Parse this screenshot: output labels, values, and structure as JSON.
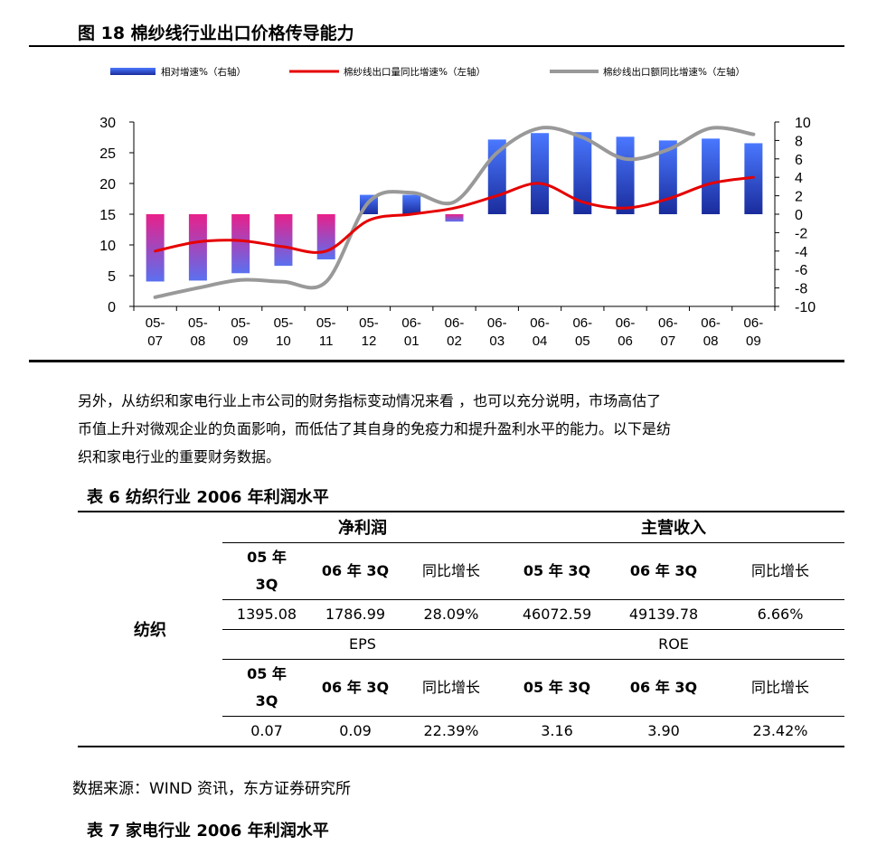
{
  "figure": {
    "title": "图 18 棉纱线行业出口价格传导能力"
  },
  "chart_data": {
    "type": "bar",
    "categories": [
      "05-07",
      "05-08",
      "05-09",
      "05-10",
      "05-11",
      "05-12",
      "06-01",
      "06-02",
      "06-03",
      "06-04",
      "06-05",
      "06-06",
      "06-07",
      "06-08",
      "06-09"
    ],
    "series": [
      {
        "name": "相对增速%（右轴）",
        "type": "bar",
        "axis": "right",
        "values": [
          -7.3,
          -7.2,
          -6.4,
          -5.6,
          -4.9,
          2.1,
          2.1,
          -0.8,
          8.1,
          8.8,
          8.9,
          8.4,
          8.0,
          8.2,
          7.7
        ]
      },
      {
        "name": "棉纱线出口量同比增速%（左轴）",
        "type": "line",
        "axis": "left",
        "values": [
          9.0,
          10.5,
          10.7,
          9.7,
          9.0,
          14.0,
          15.0,
          16.0,
          18.0,
          20.0,
          17.0,
          16.0,
          17.5,
          20.0,
          21.0
        ]
      },
      {
        "name": "棉纱线出口额同比增速%（左轴）",
        "type": "line",
        "axis": "left",
        "values": [
          1.5,
          3.0,
          4.3,
          4.0,
          4.0,
          17.0,
          18.5,
          17.0,
          25.0,
          29.0,
          27.5,
          24.0,
          25.5,
          29.0,
          28.0
        ]
      }
    ],
    "left_axis": {
      "ylim": [
        0,
        30
      ],
      "ticks": [
        "0",
        "5",
        "10",
        "15",
        "20",
        "25",
        "30"
      ]
    },
    "right_axis": {
      "ylim": [
        -10,
        10
      ],
      "ticks": [
        "-10",
        "-8",
        "-6",
        "-4",
        "-2",
        "0",
        "2",
        "4",
        "6",
        "8",
        "10"
      ]
    },
    "colors": {
      "bar_positive": "#1f3fd6",
      "bar_negative_top": "#e8208a",
      "bar_negative_bottom": "#5a70f0",
      "line_volume": "#e60000",
      "line_value": "#999999"
    },
    "grid": false,
    "legend_position": "top"
  },
  "paragraph": [
    "另外，从纺织和家电行业上市公司的财务指标变动情况来看 ，也可以充分说明，市场高估了",
    "币值上升对微观企业的负面影响，而低估了其自身的免疫力和提升盈利水平的能力。以下是纺",
    "织和家电行业的重要财务数据。"
  ],
  "table6": {
    "title": "表 6 纺织行业 2006 年利润水平",
    "category": "纺织",
    "group1": "净利润",
    "group2": "主营收入",
    "headers": [
      "05 年",
      "3Q",
      "06 年 3Q",
      "同比增长",
      "05 年 3Q",
      "06 年 3Q",
      "同比增长"
    ],
    "row1": [
      "1395.08",
      "1786.99",
      "28.09%",
      "46072.59",
      "49139.78",
      "6.66%"
    ],
    "label1": "EPS",
    "label2": "ROE",
    "row2": [
      "0.07",
      "0.09",
      "22.39%",
      "3.16",
      "3.90",
      "23.42%"
    ]
  },
  "source": "数据来源：WIND 资讯，东方证券研究所",
  "table7_title": "表 7 家电行业 2006 年利润水平"
}
